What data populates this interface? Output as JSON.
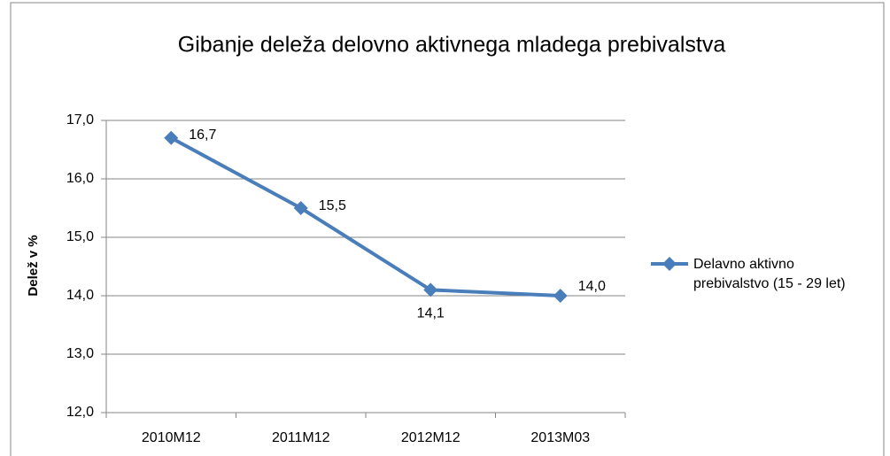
{
  "chart_data": {
    "type": "line",
    "title": "Gibanje deleža delovno aktivnega mladega prebivalstva",
    "y_label": "Delež v %",
    "categories": [
      "2010M12",
      "2011M12",
      "2012M12",
      "2013M03"
    ],
    "series": [
      {
        "name": "Delavno aktivno prebivalstvo (15 - 29 let)",
        "color": "#4a7ebb",
        "values": [
          16.7,
          15.5,
          14.1,
          14.0
        ],
        "value_labels": [
          "16,7",
          "15,5",
          "14,1",
          "14,0"
        ]
      }
    ],
    "ylim": [
      12,
      17
    ],
    "yticks": [
      {
        "value": 12,
        "label": "12,0"
      },
      {
        "value": 13,
        "label": "13,0"
      },
      {
        "value": 14,
        "label": "14,0"
      },
      {
        "value": 15,
        "label": "15,0"
      },
      {
        "value": 16,
        "label": "16,0"
      },
      {
        "value": 17,
        "label": "17,0"
      }
    ],
    "grid": true,
    "legend": "right"
  }
}
